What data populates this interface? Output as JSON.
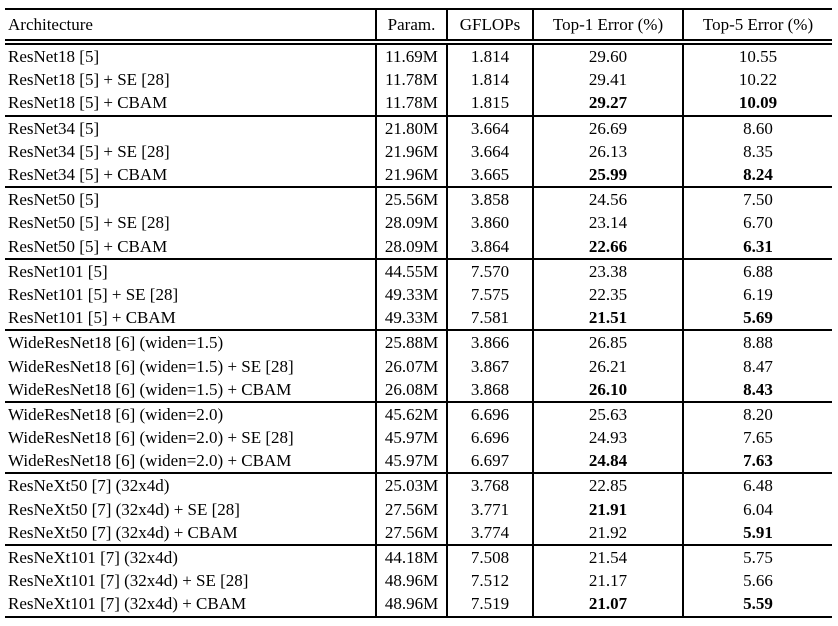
{
  "page": {
    "background_color": "#ffffff",
    "text_color": "#000000",
    "border_color": "#000000"
  },
  "table": {
    "type": "table",
    "headers": [
      "Architecture",
      "Param.",
      "GFLOPs",
      "Top-1 Error (%)",
      "Top-5 Error (%)"
    ],
    "groups": [
      {
        "rows": [
          {
            "architecture": "ResNet18 [5]",
            "params": "11.69M",
            "gflops": "1.814",
            "top1": "29.60",
            "top5": "10.55",
            "top1_bold": false,
            "top5_bold": false
          },
          {
            "architecture": "ResNet18 [5] + SE [28]",
            "params": "11.78M",
            "gflops": "1.814",
            "top1": "29.41",
            "top5": "10.22",
            "top1_bold": false,
            "top5_bold": false
          },
          {
            "architecture": "ResNet18 [5] + CBAM",
            "params": "11.78M",
            "gflops": "1.815",
            "top1": "29.27",
            "top5": "10.09",
            "top1_bold": true,
            "top5_bold": true
          }
        ]
      },
      {
        "rows": [
          {
            "architecture": "ResNet34 [5]",
            "params": "21.80M",
            "gflops": "3.664",
            "top1": "26.69",
            "top5": "8.60",
            "top1_bold": false,
            "top5_bold": false
          },
          {
            "architecture": "ResNet34 [5] + SE [28]",
            "params": "21.96M",
            "gflops": "3.664",
            "top1": "26.13",
            "top5": "8.35",
            "top1_bold": false,
            "top5_bold": false
          },
          {
            "architecture": "ResNet34 [5] + CBAM",
            "params": "21.96M",
            "gflops": "3.665",
            "top1": "25.99",
            "top5": "8.24",
            "top1_bold": true,
            "top5_bold": true
          }
        ]
      },
      {
        "rows": [
          {
            "architecture": "ResNet50 [5]",
            "params": "25.56M",
            "gflops": "3.858",
            "top1": "24.56",
            "top5": "7.50",
            "top1_bold": false,
            "top5_bold": false
          },
          {
            "architecture": "ResNet50 [5] + SE [28]",
            "params": "28.09M",
            "gflops": "3.860",
            "top1": "23.14",
            "top5": "6.70",
            "top1_bold": false,
            "top5_bold": false
          },
          {
            "architecture": "ResNet50 [5] + CBAM",
            "params": "28.09M",
            "gflops": "3.864",
            "top1": "22.66",
            "top5": "6.31",
            "top1_bold": true,
            "top5_bold": true
          }
        ]
      },
      {
        "rows": [
          {
            "architecture": "ResNet101 [5]",
            "params": "44.55M",
            "gflops": "7.570",
            "top1": "23.38",
            "top5": "6.88",
            "top1_bold": false,
            "top5_bold": false
          },
          {
            "architecture": "ResNet101 [5] + SE [28]",
            "params": "49.33M",
            "gflops": "7.575",
            "top1": "22.35",
            "top5": "6.19",
            "top1_bold": false,
            "top5_bold": false
          },
          {
            "architecture": "ResNet101 [5] + CBAM",
            "params": "49.33M",
            "gflops": "7.581",
            "top1": "21.51",
            "top5": "5.69",
            "top1_bold": true,
            "top5_bold": true
          }
        ]
      },
      {
        "rows": [
          {
            "architecture": "WideResNet18 [6] (widen=1.5)",
            "params": "25.88M",
            "gflops": "3.866",
            "top1": "26.85",
            "top5": "8.88",
            "top1_bold": false,
            "top5_bold": false
          },
          {
            "architecture": "WideResNet18 [6] (widen=1.5) + SE [28]",
            "params": "26.07M",
            "gflops": "3.867",
            "top1": "26.21",
            "top5": "8.47",
            "top1_bold": false,
            "top5_bold": false
          },
          {
            "architecture": "WideResNet18 [6] (widen=1.5) + CBAM",
            "params": "26.08M",
            "gflops": "3.868",
            "top1": "26.10",
            "top5": "8.43",
            "top1_bold": true,
            "top5_bold": true
          }
        ]
      },
      {
        "rows": [
          {
            "architecture": "WideResNet18 [6] (widen=2.0)",
            "params": "45.62M",
            "gflops": "6.696",
            "top1": "25.63",
            "top5": "8.20",
            "top1_bold": false,
            "top5_bold": false
          },
          {
            "architecture": "WideResNet18 [6] (widen=2.0) + SE [28]",
            "params": "45.97M",
            "gflops": "6.696",
            "top1": "24.93",
            "top5": "7.65",
            "top1_bold": false,
            "top5_bold": false
          },
          {
            "architecture": "WideResNet18 [6] (widen=2.0) + CBAM",
            "params": "45.97M",
            "gflops": "6.697",
            "top1": "24.84",
            "top5": "7.63",
            "top1_bold": true,
            "top5_bold": true
          }
        ]
      },
      {
        "rows": [
          {
            "architecture": "ResNeXt50 [7] (32x4d)",
            "params": "25.03M",
            "gflops": "3.768",
            "top1": "22.85",
            "top5": "6.48",
            "top1_bold": false,
            "top5_bold": false
          },
          {
            "architecture": "ResNeXt50 [7] (32x4d) + SE [28]",
            "params": "27.56M",
            "gflops": "3.771",
            "top1": "21.91",
            "top5": "6.04",
            "top1_bold": true,
            "top5_bold": false
          },
          {
            "architecture": "ResNeXt50 [7] (32x4d) + CBAM",
            "params": "27.56M",
            "gflops": "3.774",
            "top1": "21.92",
            "top5": "5.91",
            "top1_bold": false,
            "top5_bold": true
          }
        ]
      },
      {
        "rows": [
          {
            "architecture": "ResNeXt101 [7] (32x4d)",
            "params": "44.18M",
            "gflops": "7.508",
            "top1": "21.54",
            "top5": "5.75",
            "top1_bold": false,
            "top5_bold": false
          },
          {
            "architecture": "ResNeXt101 [7] (32x4d) + SE [28]",
            "params": "48.96M",
            "gflops": "7.512",
            "top1": "21.17",
            "top5": "5.66",
            "top1_bold": false,
            "top5_bold": false
          },
          {
            "architecture": "ResNeXt101 [7] (32x4d) + CBAM",
            "params": "48.96M",
            "gflops": "7.519",
            "top1": "21.07",
            "top5": "5.59",
            "top1_bold": true,
            "top5_bold": true
          }
        ]
      }
    ]
  }
}
